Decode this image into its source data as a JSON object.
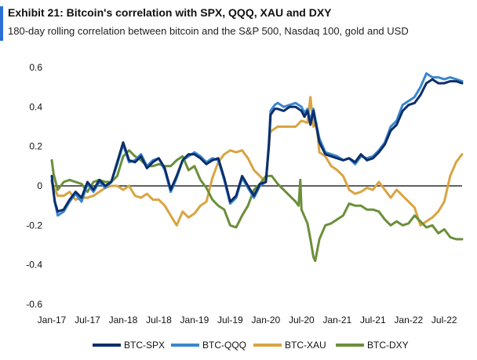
{
  "header": {
    "title": "Exhibit 21: Bitcoin's correlation with SPX, QQQ, XAU and DXY",
    "subtitle": "180-day rolling correlation between bitcoin and the S&P 500, Nasdaq 100, gold and USD"
  },
  "chart_data": {
    "type": "line",
    "title": "Exhibit 21: Bitcoin's correlation with SPX, QQQ, XAU and DXY",
    "subtitle": "180-day rolling correlation between bitcoin and the S&P 500, Nasdaq 100, gold and USD",
    "xlabel": "",
    "ylabel": "",
    "ylim": [
      -0.6,
      0.6
    ],
    "yticks": [
      0.6,
      0.4,
      0.2,
      0,
      -0.2,
      -0.4,
      -0.6
    ],
    "ytick_labels": [
      "0.6",
      "0.4",
      "0.2",
      "0",
      "-0.2",
      "-0.4",
      "-0.6"
    ],
    "xlim": [
      0,
      69
    ],
    "xticks": [
      0,
      6,
      12,
      18,
      24,
      30,
      36,
      42,
      48,
      54,
      60,
      66
    ],
    "xtick_labels": [
      "Jan-17",
      "Jul-17",
      "Jan-18",
      "Jul-18",
      "Jan-19",
      "Jul-19",
      "Jan-20",
      "Jul-20",
      "Jan-21",
      "Jul-21",
      "Jan-22",
      "Jul-22"
    ],
    "grid": false,
    "legend_position": "bottom",
    "x_unit": "months since Jan-17",
    "series": [
      {
        "name": "BTC-SPX",
        "color": "#0b2f6b",
        "points": [
          [
            0,
            0.05
          ],
          [
            0.5,
            -0.08
          ],
          [
            1,
            -0.13
          ],
          [
            2,
            -0.12
          ],
          [
            3,
            -0.07
          ],
          [
            4,
            -0.03
          ],
          [
            5,
            -0.06
          ],
          [
            6,
            0.02
          ],
          [
            7,
            -0.02
          ],
          [
            8,
            0.03
          ],
          [
            9,
            0.0
          ],
          [
            10,
            0.02
          ],
          [
            11,
            0.12
          ],
          [
            12,
            0.22
          ],
          [
            13,
            0.13
          ],
          [
            14,
            0.12
          ],
          [
            15,
            0.15
          ],
          [
            16,
            0.09
          ],
          [
            17,
            0.12
          ],
          [
            18,
            0.14
          ],
          [
            19,
            0.09
          ],
          [
            20,
            -0.02
          ],
          [
            21,
            0.05
          ],
          [
            22,
            0.13
          ],
          [
            23,
            0.16
          ],
          [
            24,
            0.16
          ],
          [
            25,
            0.14
          ],
          [
            26,
            0.11
          ],
          [
            27,
            0.13
          ],
          [
            28,
            0.14
          ],
          [
            29,
            0.04
          ],
          [
            30,
            -0.08
          ],
          [
            31,
            -0.05
          ],
          [
            32,
            0.05
          ],
          [
            33,
            0.0
          ],
          [
            34,
            -0.05
          ],
          [
            35,
            0.01
          ],
          [
            36,
            0.02
          ],
          [
            36.5,
            0.2
          ],
          [
            36.8,
            0.36
          ],
          [
            37.5,
            0.39
          ],
          [
            38,
            0.39
          ],
          [
            39,
            0.38
          ],
          [
            40,
            0.4
          ],
          [
            41,
            0.4
          ],
          [
            42,
            0.38
          ],
          [
            42.5,
            0.35
          ],
          [
            43,
            0.38
          ],
          [
            43.5,
            0.31
          ],
          [
            44,
            0.38
          ],
          [
            44.5,
            0.3
          ],
          [
            45,
            0.22
          ],
          [
            46,
            0.16
          ],
          [
            47,
            0.15
          ],
          [
            48,
            0.14
          ],
          [
            49,
            0.13
          ],
          [
            50,
            0.14
          ],
          [
            51,
            0.12
          ],
          [
            52,
            0.16
          ],
          [
            53,
            0.13
          ],
          [
            54,
            0.14
          ],
          [
            55,
            0.17
          ],
          [
            56,
            0.21
          ],
          [
            57,
            0.28
          ],
          [
            58,
            0.31
          ],
          [
            59,
            0.38
          ],
          [
            60,
            0.41
          ],
          [
            61,
            0.42
          ],
          [
            62,
            0.46
          ],
          [
            63,
            0.52
          ],
          [
            64,
            0.54
          ],
          [
            65,
            0.52
          ],
          [
            66,
            0.52
          ],
          [
            67,
            0.53
          ],
          [
            68,
            0.53
          ],
          [
            69,
            0.52
          ]
        ]
      },
      {
        "name": "BTC-QQQ",
        "color": "#3a86cf",
        "points": [
          [
            0,
            0.03
          ],
          [
            0.5,
            -0.08
          ],
          [
            1,
            -0.15
          ],
          [
            2,
            -0.13
          ],
          [
            3,
            -0.08
          ],
          [
            4,
            -0.04
          ],
          [
            5,
            -0.08
          ],
          [
            6,
            0.01
          ],
          [
            7,
            -0.03
          ],
          [
            8,
            0.02
          ],
          [
            9,
            -0.01
          ],
          [
            10,
            0.02
          ],
          [
            11,
            0.11
          ],
          [
            12,
            0.21
          ],
          [
            13,
            0.12
          ],
          [
            14,
            0.13
          ],
          [
            15,
            0.16
          ],
          [
            16,
            0.1
          ],
          [
            17,
            0.13
          ],
          [
            18,
            0.14
          ],
          [
            19,
            0.08
          ],
          [
            20,
            -0.03
          ],
          [
            21,
            0.04
          ],
          [
            22,
            0.13
          ],
          [
            23,
            0.15
          ],
          [
            24,
            0.17
          ],
          [
            25,
            0.15
          ],
          [
            26,
            0.12
          ],
          [
            27,
            0.14
          ],
          [
            28,
            0.13
          ],
          [
            29,
            0.03
          ],
          [
            30,
            -0.09
          ],
          [
            31,
            -0.06
          ],
          [
            32,
            0.04
          ],
          [
            33,
            -0.01
          ],
          [
            34,
            -0.06
          ],
          [
            35,
            0.0
          ],
          [
            36,
            0.02
          ],
          [
            36.5,
            0.22
          ],
          [
            36.8,
            0.38
          ],
          [
            37.5,
            0.41
          ],
          [
            38,
            0.42
          ],
          [
            39,
            0.4
          ],
          [
            40,
            0.41
          ],
          [
            41,
            0.42
          ],
          [
            42,
            0.4
          ],
          [
            42.5,
            0.37
          ],
          [
            43,
            0.39
          ],
          [
            43.5,
            0.33
          ],
          [
            44,
            0.39
          ],
          [
            44.5,
            0.31
          ],
          [
            45,
            0.24
          ],
          [
            46,
            0.17
          ],
          [
            47,
            0.16
          ],
          [
            48,
            0.15
          ],
          [
            49,
            0.13
          ],
          [
            50,
            0.14
          ],
          [
            51,
            0.11
          ],
          [
            52,
            0.15
          ],
          [
            53,
            0.14
          ],
          [
            54,
            0.15
          ],
          [
            55,
            0.18
          ],
          [
            56,
            0.22
          ],
          [
            57,
            0.3
          ],
          [
            58,
            0.33
          ],
          [
            59,
            0.41
          ],
          [
            60,
            0.43
          ],
          [
            61,
            0.45
          ],
          [
            62,
            0.5
          ],
          [
            63,
            0.57
          ],
          [
            64,
            0.55
          ],
          [
            65,
            0.55
          ],
          [
            66,
            0.54
          ],
          [
            67,
            0.55
          ],
          [
            68,
            0.54
          ],
          [
            69,
            0.53
          ]
        ]
      },
      {
        "name": "BTC-XAU",
        "color": "#d9a441",
        "points": [
          [
            0,
            0.02
          ],
          [
            1,
            -0.05
          ],
          [
            2,
            -0.05
          ],
          [
            3,
            -0.03
          ],
          [
            4,
            -0.07
          ],
          [
            5,
            -0.06
          ],
          [
            6,
            -0.06
          ],
          [
            7,
            -0.05
          ],
          [
            8,
            -0.03
          ],
          [
            9,
            -0.01
          ],
          [
            10,
            0.0
          ],
          [
            11,
            0.0
          ],
          [
            12,
            -0.02
          ],
          [
            13,
            0.0
          ],
          [
            14,
            -0.05
          ],
          [
            15,
            -0.06
          ],
          [
            16,
            -0.04
          ],
          [
            17,
            -0.07
          ],
          [
            18,
            -0.07
          ],
          [
            19,
            -0.1
          ],
          [
            20,
            -0.15
          ],
          [
            21,
            -0.2
          ],
          [
            22,
            -0.13
          ],
          [
            23,
            -0.16
          ],
          [
            24,
            -0.14
          ],
          [
            25,
            -0.1
          ],
          [
            26,
            -0.08
          ],
          [
            27,
            0.04
          ],
          [
            28,
            0.12
          ],
          [
            29,
            0.16
          ],
          [
            30,
            0.18
          ],
          [
            31,
            0.17
          ],
          [
            32,
            0.18
          ],
          [
            33,
            0.14
          ],
          [
            34,
            0.08
          ],
          [
            35,
            0.05
          ],
          [
            36,
            0.02
          ],
          [
            36.7,
            0.27
          ],
          [
            37,
            0.28
          ],
          [
            38,
            0.3
          ],
          [
            39,
            0.3
          ],
          [
            40,
            0.3
          ],
          [
            41,
            0.3
          ],
          [
            42,
            0.33
          ],
          [
            43,
            0.32
          ],
          [
            43.5,
            0.45
          ],
          [
            44,
            0.3
          ],
          [
            44.5,
            0.32
          ],
          [
            45,
            0.17
          ],
          [
            46,
            0.15
          ],
          [
            47,
            0.1
          ],
          [
            48,
            0.08
          ],
          [
            49,
            0.05
          ],
          [
            50,
            -0.02
          ],
          [
            51,
            -0.04
          ],
          [
            52,
            -0.03
          ],
          [
            53,
            -0.01
          ],
          [
            54,
            -0.02
          ],
          [
            55,
            0.02
          ],
          [
            56,
            -0.02
          ],
          [
            57,
            -0.06
          ],
          [
            58,
            -0.02
          ],
          [
            59,
            -0.05
          ],
          [
            60,
            -0.08
          ],
          [
            61,
            -0.11
          ],
          [
            62,
            -0.2
          ],
          [
            63,
            -0.18
          ],
          [
            64,
            -0.16
          ],
          [
            65,
            -0.13
          ],
          [
            66,
            -0.08
          ],
          [
            67,
            0.05
          ],
          [
            68,
            0.12
          ],
          [
            69,
            0.16
          ]
        ]
      },
      {
        "name": "BTC-DXY",
        "color": "#6b8f3a",
        "points": [
          [
            0,
            0.13
          ],
          [
            0.3,
            0.06
          ],
          [
            1,
            -0.02
          ],
          [
            2,
            0.02
          ],
          [
            3,
            0.03
          ],
          [
            4,
            0.02
          ],
          [
            5,
            0.01
          ],
          [
            6,
            -0.03
          ],
          [
            7,
            0.02
          ],
          [
            8,
            0.03
          ],
          [
            9,
            0.02
          ],
          [
            10,
            0.02
          ],
          [
            11,
            0.05
          ],
          [
            12,
            0.15
          ],
          [
            13,
            0.18
          ],
          [
            14,
            0.15
          ],
          [
            15,
            0.13
          ],
          [
            16,
            0.1
          ],
          [
            17,
            0.1
          ],
          [
            18,
            0.11
          ],
          [
            19,
            0.1
          ],
          [
            20,
            0.1
          ],
          [
            21,
            0.13
          ],
          [
            22,
            0.15
          ],
          [
            23,
            0.08
          ],
          [
            24,
            0.1
          ],
          [
            25,
            0.03
          ],
          [
            26,
            -0.01
          ],
          [
            27,
            -0.07
          ],
          [
            28,
            -0.1
          ],
          [
            29,
            -0.12
          ],
          [
            30,
            -0.2
          ],
          [
            31,
            -0.21
          ],
          [
            32,
            -0.15
          ],
          [
            33,
            -0.1
          ],
          [
            34,
            -0.02
          ],
          [
            35,
            0.01
          ],
          [
            36,
            0.05
          ],
          [
            37,
            0.05
          ],
          [
            38,
            0.01
          ],
          [
            39,
            -0.02
          ],
          [
            40,
            -0.05
          ],
          [
            41,
            -0.08
          ],
          [
            41.5,
            -0.1
          ],
          [
            41.8,
            0.03
          ],
          [
            42,
            -0.12
          ],
          [
            43,
            -0.19
          ],
          [
            43.5,
            -0.27
          ],
          [
            44,
            -0.36
          ],
          [
            44.3,
            -0.38
          ],
          [
            45,
            -0.27
          ],
          [
            46,
            -0.2
          ],
          [
            47,
            -0.19
          ],
          [
            48,
            -0.17
          ],
          [
            49,
            -0.15
          ],
          [
            50,
            -0.09
          ],
          [
            51,
            -0.1
          ],
          [
            52,
            -0.1
          ],
          [
            53,
            -0.12
          ],
          [
            54,
            -0.12
          ],
          [
            55,
            -0.13
          ],
          [
            56,
            -0.17
          ],
          [
            57,
            -0.2
          ],
          [
            58,
            -0.18
          ],
          [
            59,
            -0.2
          ],
          [
            60,
            -0.19
          ],
          [
            61,
            -0.15
          ],
          [
            62,
            -0.18
          ],
          [
            63,
            -0.21
          ],
          [
            64,
            -0.2
          ],
          [
            65,
            -0.24
          ],
          [
            66,
            -0.22
          ],
          [
            67,
            -0.26
          ],
          [
            68,
            -0.27
          ],
          [
            69,
            -0.27
          ]
        ]
      }
    ]
  }
}
